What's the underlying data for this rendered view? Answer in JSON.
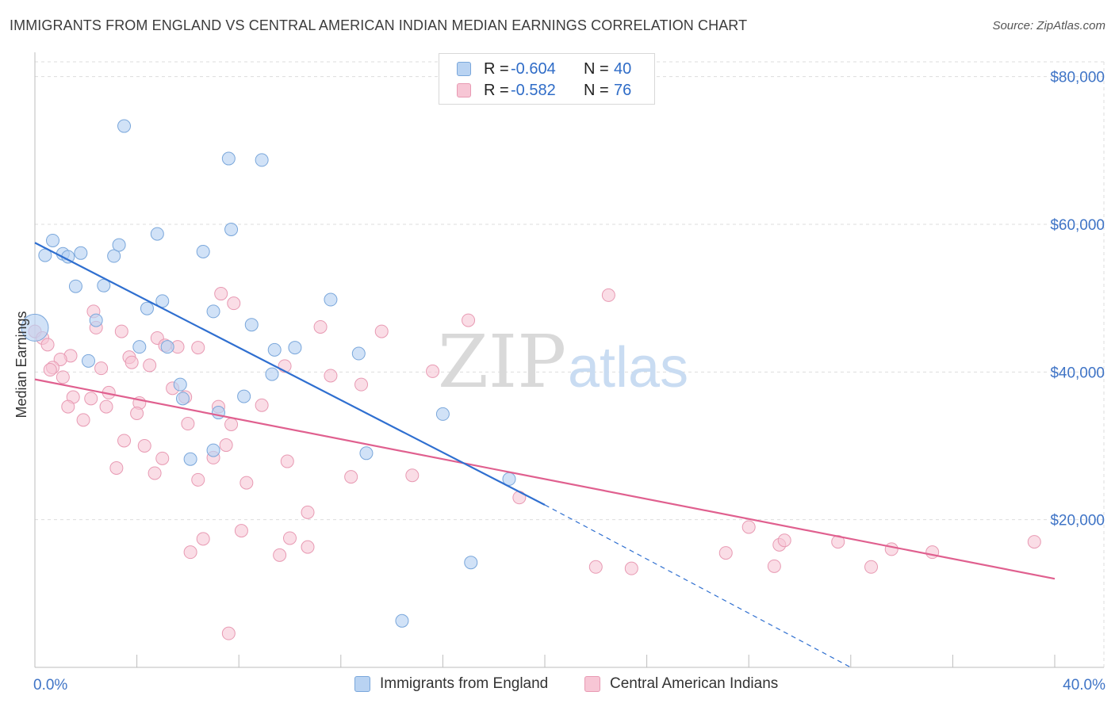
{
  "title": "IMMIGRANTS FROM ENGLAND VS CENTRAL AMERICAN INDIAN MEDIAN EARNINGS CORRELATION CHART",
  "source": "Source: ZipAtlas.com",
  "watermark": {
    "zip": "ZIP",
    "atlas": "atlas"
  },
  "colors": {
    "blue_fill": "#b9d3f2",
    "blue_stroke": "#7aa7db",
    "blue_line": "#2f6fd0",
    "pink_fill": "#f7c6d5",
    "pink_stroke": "#e89ab3",
    "pink_line": "#e0608f",
    "axis_text": "#3f74c6",
    "grid": "#dddddd"
  },
  "legend": [
    {
      "label": "R =",
      "r": "-0.604",
      "n_label": "N =",
      "n": "40"
    },
    {
      "label": "R =",
      "r": "-0.582",
      "n_label": "N =",
      "n": "76"
    }
  ],
  "chart_data": {
    "type": "scatter",
    "title": "IMMIGRANTS FROM ENGLAND VS CENTRAL AMERICAN INDIAN MEDIAN EARNINGS CORRELATION CHART",
    "xlabel": "",
    "ylabel": "Median Earnings",
    "xlim": [
      0,
      40
    ],
    "ylim": [
      0,
      82000
    ],
    "x_tick_labels": [
      "0.0%",
      "40.0%"
    ],
    "y_ticks": [
      20000,
      40000,
      60000,
      80000
    ],
    "y_tick_labels": [
      "$20,000",
      "$40,000",
      "$60,000",
      "$80,000"
    ],
    "grid": true,
    "legend_position": "top-center",
    "series": [
      {
        "name": "Immigrants from England",
        "color": "#b9d3f2",
        "trend": {
          "x": [
            0,
            20
          ],
          "y": [
            57500,
            22000
          ],
          "dashed_to": [
            32,
            0
          ]
        },
        "points": [
          [
            0.0,
            46000
          ],
          [
            0.7,
            57800
          ],
          [
            1.1,
            56000
          ],
          [
            1.3,
            55600
          ],
          [
            0.4,
            55800
          ],
          [
            1.8,
            56100
          ],
          [
            3.1,
            55700
          ],
          [
            3.3,
            57200
          ],
          [
            4.8,
            58700
          ],
          [
            6.6,
            56300
          ],
          [
            7.7,
            59300
          ],
          [
            3.5,
            73300
          ],
          [
            7.6,
            68900
          ],
          [
            8.9,
            68700
          ],
          [
            1.6,
            51600
          ],
          [
            2.7,
            51700
          ],
          [
            5.0,
            49600
          ],
          [
            4.4,
            48600
          ],
          [
            7.0,
            48200
          ],
          [
            8.5,
            46400
          ],
          [
            11.6,
            49800
          ],
          [
            2.4,
            47000
          ],
          [
            4.1,
            43400
          ],
          [
            5.2,
            43400
          ],
          [
            9.4,
            43000
          ],
          [
            10.2,
            43300
          ],
          [
            12.7,
            42500
          ],
          [
            2.1,
            41500
          ],
          [
            9.3,
            39700
          ],
          [
            5.7,
            38300
          ],
          [
            5.8,
            36400
          ],
          [
            8.2,
            36700
          ],
          [
            7.2,
            34500
          ],
          [
            16.0,
            34300
          ],
          [
            7.0,
            29400
          ],
          [
            6.1,
            28200
          ],
          [
            13.0,
            29000
          ],
          [
            18.6,
            25500
          ],
          [
            17.1,
            14200
          ],
          [
            14.4,
            6300
          ]
        ]
      },
      {
        "name": "Central American Indians",
        "color": "#f7c6d5",
        "trend": {
          "x": [
            0,
            40
          ],
          "y": [
            39000,
            12000
          ]
        },
        "points": [
          [
            0.0,
            45500
          ],
          [
            0.3,
            44600
          ],
          [
            0.5,
            43700
          ],
          [
            1.4,
            42200
          ],
          [
            1.0,
            41700
          ],
          [
            0.7,
            40600
          ],
          [
            0.6,
            40300
          ],
          [
            1.1,
            39300
          ],
          [
            2.3,
            48200
          ],
          [
            2.4,
            46000
          ],
          [
            3.4,
            45500
          ],
          [
            4.8,
            44600
          ],
          [
            5.1,
            43600
          ],
          [
            5.6,
            43400
          ],
          [
            6.4,
            43300
          ],
          [
            7.3,
            50600
          ],
          [
            7.8,
            49300
          ],
          [
            2.6,
            40500
          ],
          [
            3.7,
            42000
          ],
          [
            3.8,
            41300
          ],
          [
            4.5,
            40900
          ],
          [
            5.4,
            37800
          ],
          [
            2.9,
            37200
          ],
          [
            1.5,
            36600
          ],
          [
            2.2,
            36400
          ],
          [
            4.1,
            35800
          ],
          [
            1.3,
            35300
          ],
          [
            2.8,
            35300
          ],
          [
            5.9,
            36600
          ],
          [
            7.2,
            35300
          ],
          [
            8.9,
            35500
          ],
          [
            4.0,
            34400
          ],
          [
            1.9,
            33500
          ],
          [
            6.0,
            33000
          ],
          [
            7.7,
            32900
          ],
          [
            9.8,
            40800
          ],
          [
            11.2,
            46100
          ],
          [
            11.6,
            39500
          ],
          [
            12.8,
            38300
          ],
          [
            13.6,
            45500
          ],
          [
            15.6,
            40100
          ],
          [
            17.0,
            47000
          ],
          [
            22.5,
            50400
          ],
          [
            3.5,
            30700
          ],
          [
            4.3,
            30000
          ],
          [
            7.5,
            30100
          ],
          [
            3.2,
            27000
          ],
          [
            5.0,
            28300
          ],
          [
            7.0,
            28400
          ],
          [
            9.9,
            27900
          ],
          [
            4.7,
            26300
          ],
          [
            6.4,
            25400
          ],
          [
            8.3,
            25000
          ],
          [
            12.4,
            25800
          ],
          [
            14.8,
            26000
          ],
          [
            19.0,
            23000
          ],
          [
            10.7,
            21000
          ],
          [
            8.1,
            18500
          ],
          [
            6.6,
            17400
          ],
          [
            10.0,
            17500
          ],
          [
            6.1,
            15600
          ],
          [
            9.6,
            15200
          ],
          [
            10.7,
            16300
          ],
          [
            28.0,
            19000
          ],
          [
            27.1,
            15500
          ],
          [
            29.2,
            16600
          ],
          [
            29.4,
            17200
          ],
          [
            31.5,
            17000
          ],
          [
            33.6,
            16000
          ],
          [
            35.2,
            15600
          ],
          [
            39.2,
            17000
          ],
          [
            23.4,
            13400
          ],
          [
            29.0,
            13700
          ],
          [
            32.8,
            13600
          ],
          [
            7.6,
            4600
          ],
          [
            22.0,
            13600
          ]
        ]
      }
    ]
  }
}
